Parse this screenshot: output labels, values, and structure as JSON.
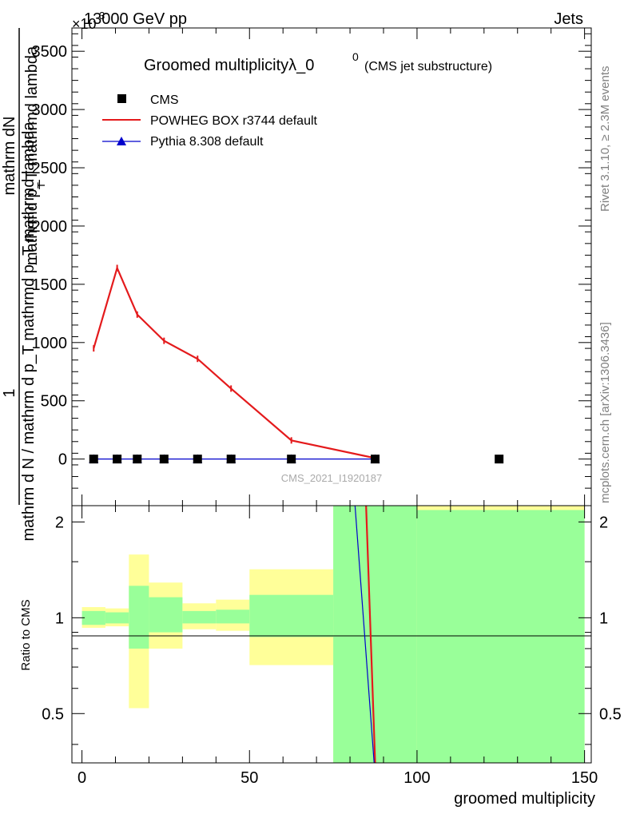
{
  "header": {
    "left": "13000 GeV pp",
    "right": "Jets",
    "exponent_glyph": "×10",
    "exponent_power": "3"
  },
  "side": {
    "top": "Rivet 3.1.10, ≥ 2.3M events",
    "bottom": "mcplots.cern.ch [arXiv:1306.3436]"
  },
  "chart_data": [
    {
      "type": "line",
      "title_main": "Groomed multiplicityλ_0",
      "title_sup": "0",
      "title_note": "(CMS jet substructure)",
      "watermark": "CMS_2021_I1920187",
      "ylabel_numerator": "mathrm dN",
      "ylabel_numerator_2": "mathrmd p_T mathrmd lambda",
      "ylabel_sub": "T",
      "ylabel_one": "1",
      "ylabel_denominator": "mathrm d N / mathrm d p_T mathrmd p_T mathrmd lambda",
      "y_scale_note": "×10^3",
      "xlim": [
        -3,
        152
      ],
      "ylim": [
        -400,
        3700
      ],
      "yticks": [
        0,
        500,
        1000,
        1500,
        2000,
        2500,
        3000,
        3500
      ],
      "yticklabels": [
        "0",
        "500",
        "1000",
        "1500",
        "2000",
        "2500",
        "3000",
        "3500"
      ],
      "legend_position": "top-left",
      "series": [
        {
          "name": "CMS",
          "style": "square-markers",
          "color": "#000000",
          "x": [
            3.5,
            10.5,
            16.5,
            24.5,
            34.5,
            44.5,
            62.5,
            87.5,
            124.5
          ],
          "y": [
            0,
            0,
            0,
            0,
            0,
            0,
            0,
            0,
            0
          ]
        },
        {
          "name": "POWHEG BOX r3744 default",
          "style": "line",
          "color": "#e41a1c",
          "x": [
            3.5,
            10.5,
            16.5,
            24.5,
            34.5,
            44.5,
            62.5,
            87.5
          ],
          "y": [
            950,
            1640,
            1240,
            1015,
            860,
            605,
            160,
            8
          ]
        },
        {
          "name": "Pythia 8.308 default",
          "style": "line-triangle",
          "color": "#0000cc",
          "x": [
            3.5,
            10.5,
            16.5,
            24.5,
            34.5,
            44.5,
            62.5,
            87.5
          ],
          "y": [
            0,
            0,
            0,
            0,
            0,
            0,
            0,
            0
          ]
        }
      ]
    },
    {
      "type": "area",
      "ylabel": "Ratio to CMS",
      "xlabel": "groomed multiplicity",
      "xlim": [
        -3,
        152
      ],
      "ylim": [
        0.35,
        2.25
      ],
      "xticks": [
        0,
        50,
        100,
        150
      ],
      "xticklabels": [
        "0",
        "50",
        "100",
        "150"
      ],
      "yticks": [
        0.5,
        1,
        2
      ],
      "yticklabels": [
        "0.5",
        "1",
        "2"
      ],
      "bands": [
        {
          "x0": 0,
          "x1": 7,
          "green": [
            0.95,
            1.05
          ],
          "yellow": [
            0.93,
            1.08
          ]
        },
        {
          "x0": 7,
          "x1": 14,
          "green": [
            0.96,
            1.04
          ],
          "yellow": [
            0.94,
            1.07
          ]
        },
        {
          "x0": 14,
          "x1": 20,
          "green": [
            0.8,
            1.26
          ],
          "yellow": [
            0.52,
            1.58
          ]
        },
        {
          "x0": 20,
          "x1": 30,
          "green": [
            0.9,
            1.16
          ],
          "yellow": [
            0.8,
            1.29
          ]
        },
        {
          "x0": 30,
          "x1": 40,
          "green": [
            0.96,
            1.05
          ],
          "yellow": [
            0.92,
            1.11
          ]
        },
        {
          "x0": 40,
          "x1": 50,
          "green": [
            0.96,
            1.06
          ],
          "yellow": [
            0.91,
            1.14
          ]
        },
        {
          "x0": 50,
          "x1": 75,
          "green": [
            0.87,
            1.18
          ],
          "yellow": [
            0.71,
            1.42
          ]
        },
        {
          "x0": 75,
          "x1": 100,
          "green": [
            0.35,
            2.25
          ],
          "yellow": [
            0.35,
            2.25
          ]
        },
        {
          "x0": 100,
          "x1": 150,
          "green": [
            0.35,
            2.18
          ],
          "yellow": [
            0.35,
            2.25
          ]
        }
      ],
      "series": [
        {
          "name": "POWHEG BOX r3744 default",
          "color": "#e41a1c",
          "x": [
            84.8,
            87.5
          ],
          "y": [
            2.25,
            0.35
          ]
        },
        {
          "name": "Pythia 8.308 default",
          "color": "#0000cc",
          "x": [
            81.5,
            87.2
          ],
          "y": [
            2.25,
            0.35
          ]
        }
      ]
    }
  ]
}
